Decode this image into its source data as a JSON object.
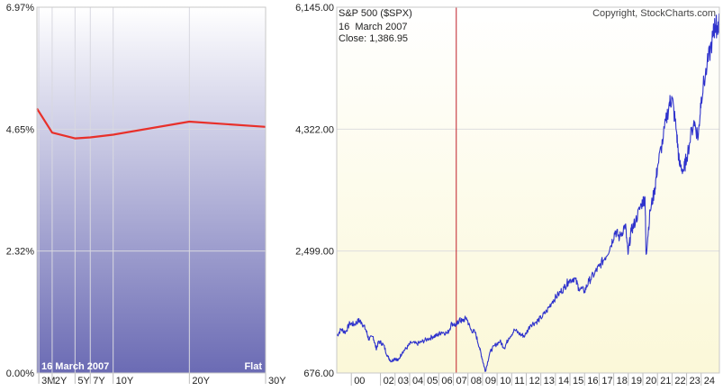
{
  "chart_data": [
    {
      "type": "line",
      "title": "",
      "date_label": "16 March 2007",
      "curve_label": "Flat",
      "categories": [
        "3M",
        "2Y",
        "5Y",
        "7Y",
        "10Y",
        "20Y",
        "30Y"
      ],
      "series": [
        {
          "values": [
            5.04,
            4.58,
            4.47,
            4.49,
            4.54,
            4.79,
            4.69
          ]
        }
      ],
      "y_ticks": [
        "6.97%",
        "4.65%",
        "2.32%",
        "0.00%"
      ],
      "ylim": [
        0,
        6.97
      ],
      "grid": true,
      "colors": {
        "line": "#e8302a",
        "fill_top": "#ffffff",
        "fill_bottom": "#6b6bb4"
      }
    },
    {
      "type": "line",
      "title": "S&P 500 ($SPX)",
      "copyright": "Copyright, StockCharts.com",
      "cursor_date": "16  March 2007",
      "cursor_close": "Close: 1,386.95",
      "y_ticks": [
        "6,145.00",
        "4,322.00",
        "2,499.00",
        "676.00"
      ],
      "ylim": [
        676,
        6145
      ],
      "xlim": [
        1999.0,
        2025.25
      ],
      "x_ticks": [
        "00",
        "02",
        "03",
        "04",
        "05",
        "06",
        "07",
        "08",
        "09",
        "10",
        "11",
        "12",
        "13",
        "14",
        "15",
        "16",
        "17",
        "18",
        "19",
        "20",
        "21",
        "22",
        "23",
        "24"
      ],
      "x_tick_years": [
        2000,
        2002,
        2003,
        2004,
        2005,
        2006,
        2007,
        2008,
        2009,
        2010,
        2011,
        2012,
        2013,
        2014,
        2015,
        2016,
        2017,
        2018,
        2019,
        2020,
        2021,
        2022,
        2023,
        2024
      ],
      "cursor_year": 2007.2,
      "x": [
        1999.0,
        1999.3,
        1999.6,
        1999.9,
        2000.2,
        2000.5,
        2000.7,
        2001.0,
        2001.2,
        2001.5,
        2001.7,
        2001.9,
        2002.2,
        2002.5,
        2002.75,
        2003.0,
        2003.2,
        2003.5,
        2003.8,
        2004.1,
        2004.5,
        2004.8,
        2005.2,
        2005.6,
        2005.9,
        2006.2,
        2006.6,
        2006.9,
        2007.2,
        2007.4,
        2007.6,
        2007.9,
        2008.2,
        2008.5,
        2008.8,
        2009.0,
        2009.2,
        2009.5,
        2009.8,
        2010.2,
        2010.5,
        2010.8,
        2011.2,
        2011.6,
        2011.9,
        2012.3,
        2012.7,
        2013.0,
        2013.4,
        2013.8,
        2014.2,
        2014.6,
        2014.9,
        2015.3,
        2015.6,
        2016.0,
        2016.3,
        2016.7,
        2017.0,
        2017.4,
        2017.8,
        2018.1,
        2018.4,
        2018.8,
        2018.98,
        2019.2,
        2019.5,
        2019.9,
        2020.15,
        2020.22,
        2020.5,
        2020.8,
        2021.0,
        2021.4,
        2021.8,
        2022.0,
        2022.3,
        2022.5,
        2022.8,
        2023.0,
        2023.5,
        2023.8,
        2024.0,
        2024.4,
        2024.8,
        2024.95,
        2025.1,
        2025.25
      ],
      "values": [
        1229,
        1330,
        1285,
        1420,
        1400,
        1460,
        1436,
        1320,
        1180,
        1220,
        1040,
        1150,
        1100,
        920,
        850,
        900,
        860,
        990,
        1050,
        1130,
        1110,
        1140,
        1180,
        1220,
        1240,
        1290,
        1270,
        1420,
        1387,
        1470,
        1450,
        1500,
        1320,
        1280,
        1050,
        870,
        700,
        980,
        1080,
        1150,
        1050,
        1200,
        1320,
        1250,
        1230,
        1400,
        1440,
        1500,
        1600,
        1750,
        1850,
        1950,
        2050,
        2100,
        1950,
        1900,
        2050,
        2170,
        2270,
        2400,
        2580,
        2800,
        2700,
        2900,
        2450,
        2800,
        2950,
        3200,
        3300,
        2450,
        3100,
        3400,
        3750,
        4200,
        4700,
        4780,
        4300,
        3800,
        3700,
        3900,
        4450,
        4200,
        4800,
        5250,
        5700,
        5880,
        5850,
        5900
      ],
      "grid": true,
      "colors": {
        "line": "#2f33cc",
        "cursor": "#c0202a",
        "fill_top": "#ffffff",
        "fill_bottom": "#fbf8d8"
      }
    }
  ]
}
